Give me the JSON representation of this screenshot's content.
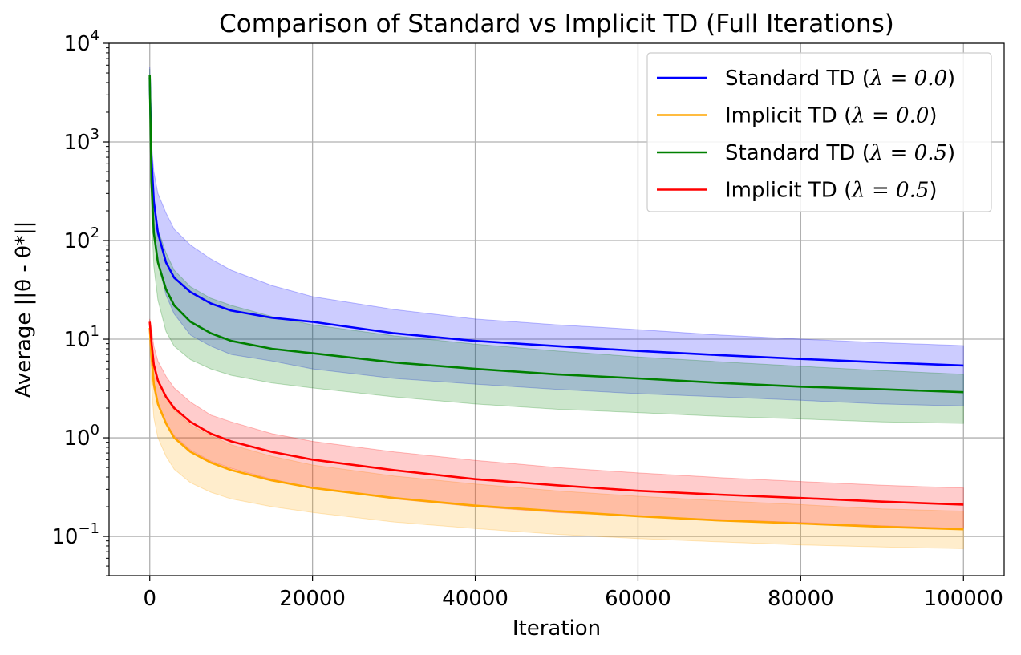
{
  "chart_data": {
    "type": "line",
    "title": "Comparison of Standard vs Implicit TD (Full Iterations)",
    "xlabel": "Iteration",
    "ylabel": "Average ||θ - θ*||",
    "xlim": [
      -5000,
      105000
    ],
    "ylim": [
      0.04,
      10000
    ],
    "yscale": "log",
    "grid": true,
    "legend_position": "top-right",
    "x_ticks": [
      {
        "value": 0,
        "label": "0"
      },
      {
        "value": 20000,
        "label": "20000"
      },
      {
        "value": 40000,
        "label": "40000"
      },
      {
        "value": 60000,
        "label": "60000"
      },
      {
        "value": 80000,
        "label": "80000"
      },
      {
        "value": 100000,
        "label": "100000"
      }
    ],
    "y_ticks": [
      {
        "value": 0.1,
        "base": "10",
        "exp": "−1"
      },
      {
        "value": 1,
        "base": "10",
        "exp": "0"
      },
      {
        "value": 10,
        "base": "10",
        "exp": "1"
      },
      {
        "value": 100,
        "base": "10",
        "exp": "2"
      },
      {
        "value": 1000,
        "base": "10",
        "exp": "3"
      },
      {
        "value": 10000,
        "base": "10",
        "exp": "4"
      }
    ],
    "series": [
      {
        "name": "Standard TD (λ = 0.0)",
        "legend_prefix": "Standard TD (",
        "legend_lambda": "λ = 0.0",
        "legend_suffix": ")",
        "color": "#0000ff",
        "fill_color": "#0000ff",
        "x": [
          0,
          200,
          500,
          1000,
          2000,
          3000,
          5000,
          7500,
          10000,
          15000,
          20000,
          30000,
          40000,
          50000,
          60000,
          70000,
          80000,
          90000,
          100000
        ],
        "y": [
          4500,
          700,
          250,
          120,
          60,
          42,
          30,
          23,
          19.5,
          16.5,
          15,
          11.5,
          9.6,
          8.5,
          7.6,
          6.9,
          6.3,
          5.8,
          5.4
        ],
        "lower": [
          3000,
          400,
          120,
          60,
          28,
          18,
          11,
          8.5,
          7,
          6,
          5,
          4,
          3.5,
          3.1,
          2.8,
          2.6,
          2.4,
          2.2,
          2.1
        ],
        "upper": [
          5800,
          1000,
          500,
          300,
          190,
          130,
          90,
          65,
          50,
          35,
          27,
          20,
          16,
          14,
          12.5,
          11,
          10,
          9.2,
          8.6
        ]
      },
      {
        "name": "Implicit TD (λ = 0.0)",
        "legend_prefix": "Implicit TD (",
        "legend_lambda": "λ = 0.0",
        "legend_suffix": ")",
        "color": "#ffa500",
        "fill_color": "#ffa500",
        "x": [
          0,
          200,
          500,
          1000,
          2000,
          3000,
          5000,
          7500,
          10000,
          15000,
          20000,
          30000,
          40000,
          50000,
          60000,
          70000,
          80000,
          90000,
          100000
        ],
        "y": [
          13,
          7,
          3.5,
          2.2,
          1.4,
          1.0,
          0.72,
          0.56,
          0.47,
          0.37,
          0.31,
          0.245,
          0.205,
          0.18,
          0.16,
          0.145,
          0.135,
          0.125,
          0.118
        ],
        "lower": [
          9,
          3.5,
          1.6,
          1.0,
          0.65,
          0.48,
          0.35,
          0.28,
          0.24,
          0.2,
          0.175,
          0.14,
          0.12,
          0.105,
          0.095,
          0.088,
          0.082,
          0.078,
          0.075
        ],
        "upper": [
          15,
          10,
          6,
          4,
          2.6,
          1.9,
          1.35,
          1.05,
          0.85,
          0.65,
          0.53,
          0.41,
          0.34,
          0.29,
          0.255,
          0.23,
          0.21,
          0.19,
          0.18
        ]
      },
      {
        "name": "Standard TD (λ = 0.5)",
        "legend_prefix": "Standard TD (",
        "legend_lambda": "λ = 0.5",
        "legend_suffix": ")",
        "color": "#008000",
        "fill_color": "#008000",
        "x": [
          0,
          200,
          500,
          1000,
          2000,
          3000,
          5000,
          7500,
          10000,
          15000,
          20000,
          30000,
          40000,
          50000,
          60000,
          70000,
          80000,
          90000,
          100000
        ],
        "y": [
          4800,
          400,
          120,
          60,
          32,
          22,
          15,
          11.5,
          9.6,
          8.0,
          7.2,
          5.8,
          5.0,
          4.4,
          4.0,
          3.6,
          3.3,
          3.1,
          2.9
        ],
        "lower": [
          3200,
          200,
          55,
          25,
          12,
          8.5,
          6.2,
          5,
          4.3,
          3.6,
          3.2,
          2.6,
          2.2,
          1.95,
          1.8,
          1.65,
          1.55,
          1.45,
          1.4
        ],
        "upper": [
          5500,
          700,
          250,
          130,
          75,
          50,
          34,
          26,
          22,
          17,
          14,
          10.8,
          8.9,
          7.6,
          6.6,
          5.9,
          5.3,
          4.8,
          4.4
        ]
      },
      {
        "name": "Implicit TD (λ = 0.5)",
        "legend_prefix": "Implicit TD (",
        "legend_lambda": "λ = 0.5",
        "legend_suffix": ")",
        "color": "#ff0000",
        "fill_color": "#ff0000",
        "x": [
          0,
          200,
          500,
          1000,
          2000,
          3000,
          5000,
          7500,
          10000,
          15000,
          20000,
          30000,
          40000,
          50000,
          60000,
          70000,
          80000,
          90000,
          100000
        ],
        "y": [
          15,
          9.5,
          5.5,
          3.8,
          2.6,
          2.0,
          1.45,
          1.1,
          0.92,
          0.72,
          0.6,
          0.47,
          0.38,
          0.33,
          0.29,
          0.265,
          0.245,
          0.225,
          0.21
        ],
        "lower": [
          11,
          6,
          3.2,
          2.1,
          1.4,
          1.05,
          0.75,
          0.58,
          0.49,
          0.38,
          0.31,
          0.24,
          0.2,
          0.175,
          0.16,
          0.148,
          0.138,
          0.128,
          0.12
        ],
        "upper": [
          16,
          13,
          8.5,
          6,
          4.2,
          3.2,
          2.3,
          1.7,
          1.45,
          1.1,
          0.92,
          0.72,
          0.59,
          0.5,
          0.44,
          0.395,
          0.36,
          0.33,
          0.31
        ]
      }
    ]
  }
}
